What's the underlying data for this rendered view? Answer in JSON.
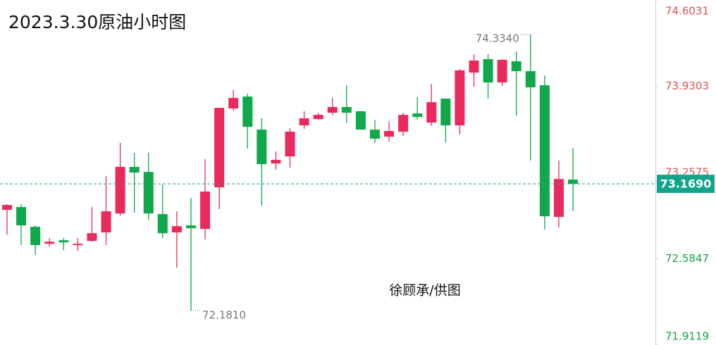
{
  "chart_data": {
    "type": "candlestick",
    "title": "2023.3.30原油小时图",
    "watermark": "徐顾承/供图",
    "up_color": "#ea2a5c",
    "down_color": "#10a84a",
    "ylim": [
      71.9119,
      74.6031
    ],
    "yticks": [
      74.6031,
      73.9303,
      73.2575,
      72.5847,
      71.9119
    ],
    "series": [
      {
        "open": [
          72.966,
          72.988,
          72.834,
          72.702,
          72.729,
          72.696,
          72.724,
          72.79,
          72.938,
          73.301,
          73.262,
          72.933,
          72.79,
          72.845,
          72.817,
          73.142,
          73.757,
          73.85,
          73.592,
          73.328,
          73.383,
          73.625,
          73.674,
          73.724,
          73.768,
          73.735,
          73.592,
          73.537,
          73.576,
          73.718,
          73.647,
          73.834,
          73.625,
          74.037,
          74.142,
          73.96,
          74.125,
          74.048,
          73.938,
          72.911,
          73.202
        ],
        "high": [
          73.01,
          73.01,
          72.845,
          72.746,
          72.746,
          72.746,
          72.988,
          73.229,
          73.488,
          73.411,
          73.411,
          73.163,
          72.955,
          73.059,
          73.361,
          73.762,
          73.9,
          73.872,
          73.68,
          73.422,
          73.603,
          73.735,
          73.724,
          73.839,
          73.938,
          73.735,
          73.669,
          73.652,
          73.724,
          73.845,
          73.949,
          73.834,
          74.065,
          74.18,
          74.18,
          74.142,
          74.202,
          74.334,
          74.015,
          73.35,
          73.449
        ],
        "low": [
          72.773,
          72.691,
          72.614,
          72.68,
          72.652,
          72.647,
          72.718,
          72.691,
          72.922,
          72.944,
          72.889,
          72.746,
          72.515,
          72.181,
          72.735,
          72.971,
          73.74,
          73.444,
          72.999,
          73.279,
          73.295,
          73.598,
          73.669,
          73.702,
          73.642,
          73.592,
          73.488,
          73.499,
          73.543,
          73.669,
          73.62,
          73.493,
          73.554,
          73.927,
          73.834,
          73.933,
          73.702,
          73.35,
          72.812,
          72.828,
          72.955
        ],
        "close": [
          73.004,
          72.845,
          72.691,
          72.718,
          72.713,
          72.702,
          72.784,
          72.955,
          73.301,
          73.257,
          72.938,
          72.784,
          72.839,
          72.823,
          73.109,
          73.762,
          73.839,
          73.614,
          73.323,
          73.356,
          73.576,
          73.68,
          73.707,
          73.768,
          73.724,
          73.592,
          73.521,
          73.581,
          73.707,
          73.691,
          73.806,
          73.625,
          74.054,
          74.131,
          73.96,
          74.136,
          74.048,
          73.922,
          72.916,
          73.207,
          73.169
        ]
      }
    ],
    "high_marker": {
      "value": 74.334,
      "label": "74.3340"
    },
    "low_marker": {
      "value": 72.181,
      "label": "72.1810"
    },
    "last_price": {
      "value": 73.169,
      "label": "73.1690",
      "color": "#14a48a"
    }
  }
}
